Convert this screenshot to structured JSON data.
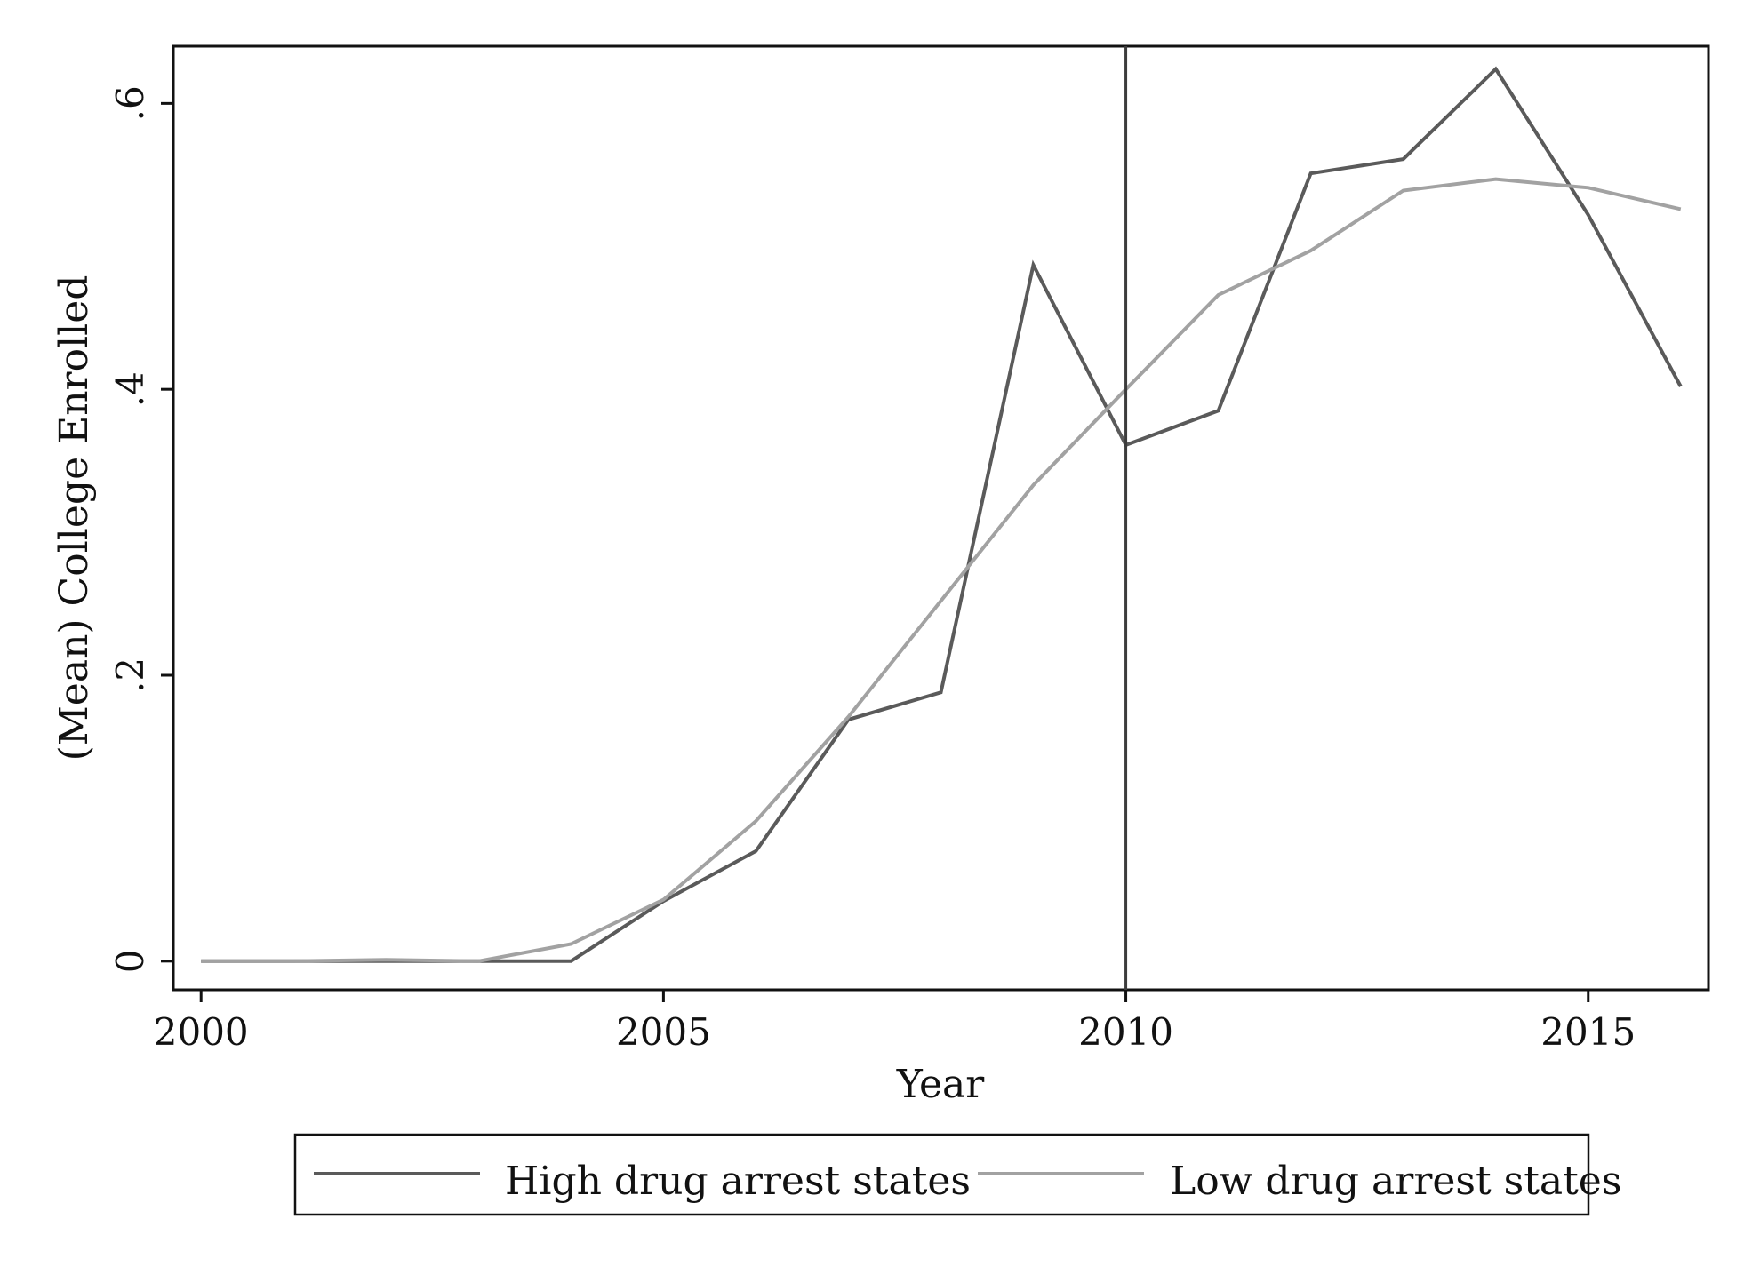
{
  "chart_data": {
    "type": "line",
    "title": "",
    "xlabel": "Year",
    "ylabel": "(Mean) College Enrolled",
    "xlim": [
      1999.7,
      2016.3
    ],
    "ylim": [
      -0.02,
      0.64
    ],
    "x_ticks": [
      2000,
      2005,
      2010,
      2015
    ],
    "x_tick_labels": [
      "2000",
      "2005",
      "2010",
      "2015"
    ],
    "y_ticks": [
      0,
      0.2,
      0.4,
      0.6
    ],
    "y_tick_labels": [
      "0",
      ".2",
      ".4",
      ".6"
    ],
    "grid": false,
    "legend_position": "bottom",
    "vertical_line": {
      "x": 2010,
      "color": "#3c3c3c"
    },
    "x": [
      2000,
      2001,
      2002,
      2003,
      2004,
      2005,
      2006,
      2007,
      2008,
      2009,
      2010,
      2011,
      2012,
      2013,
      2014,
      2015,
      2016
    ],
    "series": [
      {
        "name": "High drug arrest states",
        "color": "#5a5a5a",
        "values": [
          0,
          0,
          0,
          0,
          0,
          0.042,
          0.077,
          0.169,
          0.188,
          0.487,
          0.361,
          0.385,
          0.551,
          0.561,
          0.624,
          0.522,
          0.402
        ]
      },
      {
        "name": "Low drug arrest states",
        "color": "#a2a2a2",
        "values": [
          0,
          0,
          0.001,
          0,
          0.012,
          0.043,
          0.098,
          0.171,
          0.252,
          0.333,
          0.4,
          0.466,
          0.497,
          0.539,
          0.547,
          0.541,
          0.526
        ]
      }
    ]
  }
}
